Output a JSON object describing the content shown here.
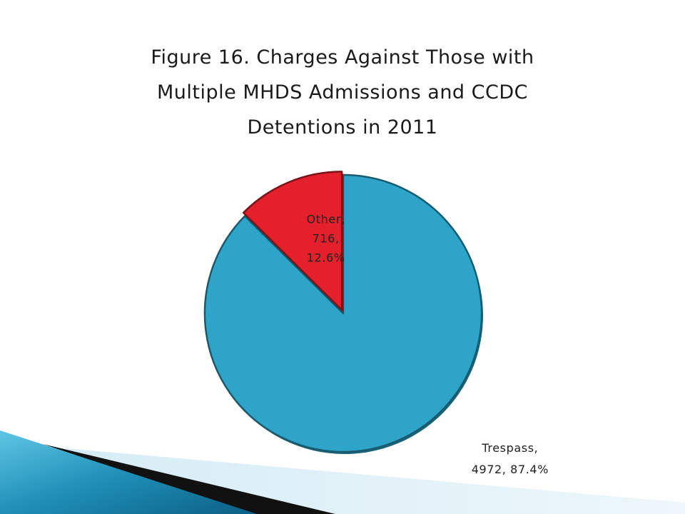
{
  "slide": {
    "title_lines": [
      "Figure 16. Charges Against Those with",
      "Multiple MHDS Admissions and CCDC",
      "Detentions in 2011"
    ]
  },
  "chart_data": {
    "type": "pie",
    "title": "Figure 16. Charges Against Those with Multiple MHDS Admissions and CCDC Detentions in 2011",
    "slices": [
      {
        "label": "Trespass",
        "value": 4972,
        "percent": 87.4,
        "color": "#2ea5c8",
        "label_lines": [
          "Trespass,",
          "4972, 87.4%"
        ]
      },
      {
        "label": "Other",
        "value": 716,
        "percent": 12.6,
        "color": "#e3202b",
        "label_lines": [
          "Other,",
          "716,",
          "12.6%"
        ]
      }
    ],
    "legend": false
  }
}
